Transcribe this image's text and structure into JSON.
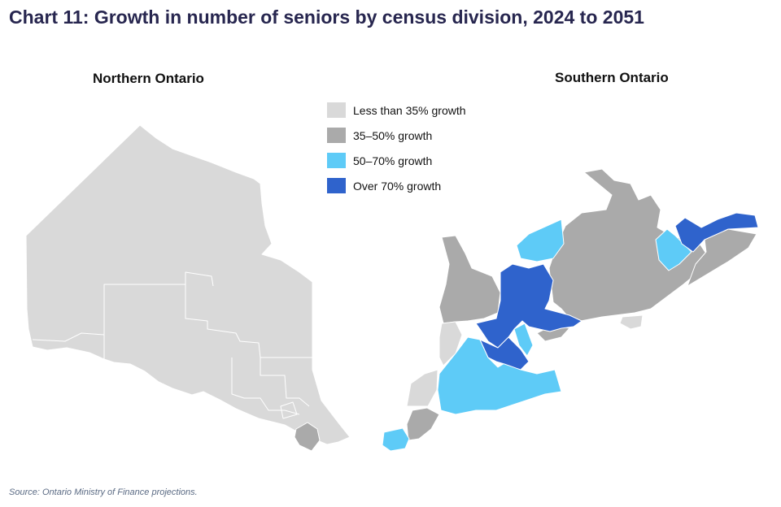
{
  "title": "Chart 11: Growth in number of seniors by census division, 2024 to 2051",
  "maps": {
    "north_label": "Northern Ontario",
    "south_label": "Southern Ontario"
  },
  "legend": [
    {
      "label": "Less than  35% growth",
      "color": "#d9d9d9"
    },
    {
      "label": "35–50% growth",
      "color": "#aaaaaa"
    },
    {
      "label": "50–70% growth",
      "color": "#5ecbf7"
    },
    {
      "label": "Over 70% growth",
      "color": "#2f63cc"
    }
  ],
  "source": "Source: Ontario Ministry of Finance projections."
}
